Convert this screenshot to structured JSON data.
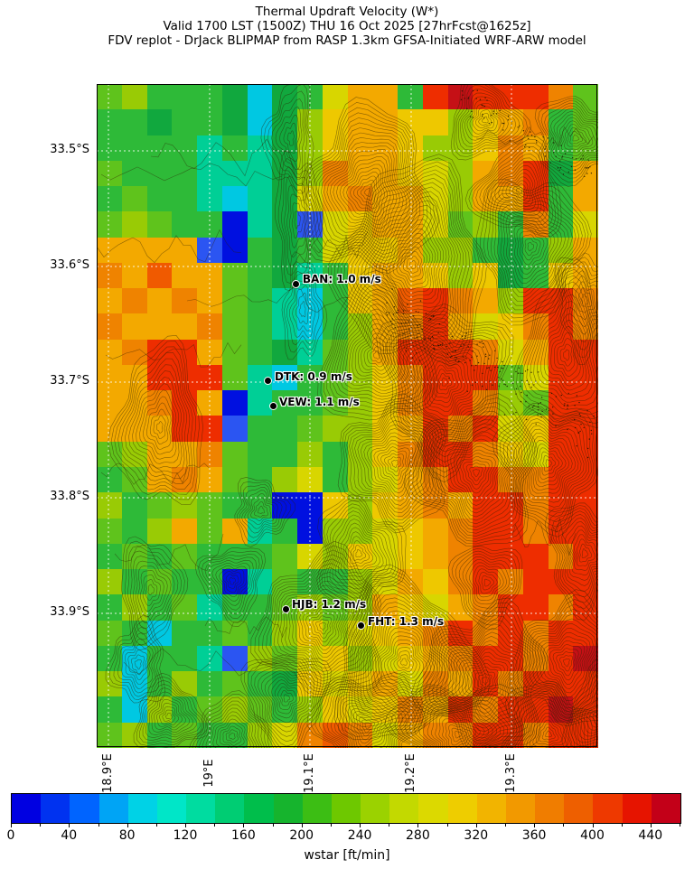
{
  "title": {
    "line1": "Thermal Updraft Velocity (W*)",
    "line2": "Valid 1700 LST (1500Z) THU 16 Oct 2025 [27hrFcst@1625z]",
    "line3": "FDV replot - DrJack BLIPMAP from RASP 1.3km GFSA-Initiated WRF-ARW model"
  },
  "map": {
    "x_ticks": [
      {
        "label": "18.9°E",
        "f": 0.0234
      },
      {
        "label": "19°E",
        "f": 0.2252
      },
      {
        "label": "19.1°E",
        "f": 0.4252
      },
      {
        "label": "19.2°E",
        "f": 0.627
      },
      {
        "label": "19.3°E",
        "f": 0.827
      }
    ],
    "y_ticks": [
      {
        "label": "33.5°S",
        "f": 0.1007
      },
      {
        "label": "33.6°S",
        "f": 0.2748
      },
      {
        "label": "33.7°S",
        "f": 0.449
      },
      {
        "label": "33.8°S",
        "f": 0.6231
      },
      {
        "label": "33.9°S",
        "f": 0.7973
      }
    ],
    "stations": [
      {
        "name": "BAN",
        "label": "BAN: 1.0 m/s",
        "fx": 0.398,
        "fy": 0.3007
      },
      {
        "name": "DTK",
        "label": "DTK: 0.9 m/s",
        "fx": 0.3423,
        "fy": 0.4476
      },
      {
        "name": "VEW",
        "label": "VEW: 1.1 m/s",
        "fx": 0.3514,
        "fy": 0.4857
      },
      {
        "name": "HJB",
        "label": "HJB: 1.2 m/s",
        "fx": 0.3766,
        "fy": 0.7905
      },
      {
        "name": "FHT",
        "label": "FHT: 1.3 m/s",
        "fx": 0.5279,
        "fy": 0.8163
      }
    ],
    "raster": {
      "palette": {
        "B": "#0010e0",
        "b": "#2b55f2",
        "c": "#00c8e2",
        "t": "#00cf96",
        "G": "#11a83e",
        "g": "#2eba38",
        "e": "#5fc31c",
        "y": "#99cb05",
        "Y": "#d8d600",
        "d": "#eec800",
        "o": "#f3a900",
        "O": "#ef8300",
        "r": "#f05a00",
        "R": "#ee2d00",
        "D": "#c51016"
      },
      "rows": [
        "eygggGcGgYoogRDRRROe",
        "ggGggGcGydooddydoOge",
        "ggggtgtGydoodyydOoge",
        "egggtttGyOoodYyoORGo",
        "geggtctGYoOooYyooRgo",
        "eyeggBtGbYdooYeygOgY",
        "oooobBgGgYddoyygGgyo",
        "OorooegGtgdoodydGgdo",
        "oOoOoegtcgdorROoyRRO",
        "OoooOegtcgyoORoYdORO",
        "oORRoegGteyoRRROYoRR",
        "ooRRRetcgeydORRReYRR",
        "ooORoBtggeydORROyeRR",
        "oooRRbggeyydoRORYdRR",
        "eyooOeggygydORROdYRR",
        "geoOoegyYgyYoORROORR",
        "ygeyeggBBdydoOoRRORR",
        "egyoeotgByyYdoORRORR",
        "gegegggeYydYdoORRROR",
        "ygeggBteggyYodORORRR",
        "gygetggeyeyodYoORROR",
        "egcggegydyYdoORORORR",
        "gcggtbyeYdyYdoORRORD",
        "ycgygegGdYdoYOoRORRR",
        "gcygeyegydYdOoRORRDR",
        "eygeggyYOrOYoOORRORR"
      ]
    }
  },
  "colorbar": {
    "label": "wstar [ft/min]",
    "min": 0,
    "max": 460,
    "minor_step": 20,
    "major_step": 40,
    "major_values": [
      0,
      40,
      80,
      120,
      160,
      200,
      240,
      280,
      320,
      360,
      400,
      440
    ],
    "colors": [
      "#0000e1",
      "#0032f0",
      "#0064ff",
      "#00a4f5",
      "#00d2e6",
      "#00e6c8",
      "#00dca0",
      "#00cd73",
      "#00be4b",
      "#16b42d",
      "#3cbe14",
      "#6ec800",
      "#9bd200",
      "#c3d900",
      "#dcd900",
      "#eecd00",
      "#f2b400",
      "#f29900",
      "#f07d00",
      "#ee5f00",
      "#ee3900",
      "#e61400",
      "#c30018"
    ]
  },
  "chart_data": {
    "type": "heatmap",
    "title": "Thermal Updraft Velocity (W*)",
    "subtitle": "Valid 1700 LST (1500Z) THU 16 Oct 2025 [27hrFcst@1625z]",
    "source_note": "FDV replot - DrJack BLIPMAP from RASP 1.3km GFSA-Initiated WRF-ARW model",
    "xlabel": "longitude",
    "ylabel": "latitude",
    "x_tick_labels": [
      "18.9°E",
      "19°E",
      "19.1°E",
      "19.2°E",
      "19.3°E"
    ],
    "y_tick_labels": [
      "33.5°S",
      "33.6°S",
      "33.7°S",
      "33.8°S",
      "33.9°S"
    ],
    "colorbar": {
      "label": "wstar [ft/min]",
      "range": [
        0,
        460
      ],
      "block_size": 20,
      "tick_labels": [
        0,
        40,
        80,
        120,
        160,
        200,
        240,
        280,
        320,
        360,
        400,
        440
      ]
    },
    "annotations": [
      {
        "station": "BAN",
        "wstar_ms": 1.0
      },
      {
        "station": "DTK",
        "wstar_ms": 0.9
      },
      {
        "station": "VEW",
        "wstar_ms": 1.1
      },
      {
        "station": "HJB",
        "wstar_ms": 1.2
      },
      {
        "station": "FHT",
        "wstar_ms": 1.3
      }
    ],
    "legend_position": "bottom",
    "grid": "white dashed lat/lon graticule, black terrain contour overlay"
  }
}
